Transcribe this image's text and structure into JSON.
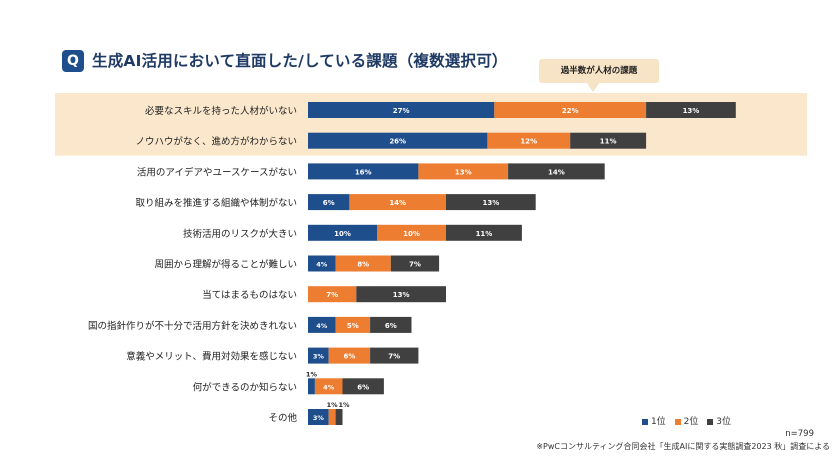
{
  "header": {
    "badge": "Q",
    "title": "生成AI活用において直面した/している課題（複数選択可）",
    "callout": "過半数が人材の課題"
  },
  "chart_data": {
    "type": "bar",
    "orientation": "horizontal",
    "stacked": true,
    "categories": [
      "必要なスキルを持った人材がいない",
      "ノウハウがなく、進め方がわからない",
      "活用のアイデアやユースケースがない",
      "取り組みを推進する組織や体制がない",
      "技術活用のリスクが大きい",
      "周囲から理解が得ることが難しい",
      "当てはまるものはない",
      "国の指針作りが不十分で活用方針を決めきれない",
      "意義やメリット、費用対効果を感じない",
      "何ができるのか知らない",
      "その他"
    ],
    "series": [
      {
        "name": "1位",
        "color": "#1f4e8c",
        "values": [
          27,
          26,
          16,
          6,
          10,
          4,
          0,
          4,
          3,
          1,
          3
        ]
      },
      {
        "name": "2位",
        "color": "#ed7d31",
        "values": [
          22,
          12,
          13,
          14,
          10,
          8,
          7,
          5,
          6,
          4,
          1
        ]
      },
      {
        "name": "3位",
        "color": "#404040",
        "values": [
          13,
          11,
          14,
          13,
          11,
          7,
          13,
          6,
          7,
          6,
          1
        ]
      }
    ],
    "data_labels": [
      [
        "27%",
        "22%",
        "13%"
      ],
      [
        "26%",
        "12%",
        "11%"
      ],
      [
        "16%",
        "13%",
        "14%"
      ],
      [
        "6%",
        "14%",
        "13%"
      ],
      [
        "10%",
        "10%",
        "11%"
      ],
      [
        "4%",
        "8%",
        "7%"
      ],
      [
        "",
        "7%",
        "13%"
      ],
      [
        "4%",
        "5%",
        "6%"
      ],
      [
        "3%",
        "6%",
        "7%"
      ],
      [
        "1%",
        "4%",
        "6%"
      ],
      [
        "3%",
        "1%",
        "1%"
      ]
    ],
    "highlighted_categories": [
      0,
      1
    ],
    "unit": "%",
    "legend_position": "bottom-right",
    "grid": false,
    "n_note": "n=799",
    "source": "※PwCコンサルティング合同会社「生成AIに関する実態調査2023 秋」調査による"
  }
}
